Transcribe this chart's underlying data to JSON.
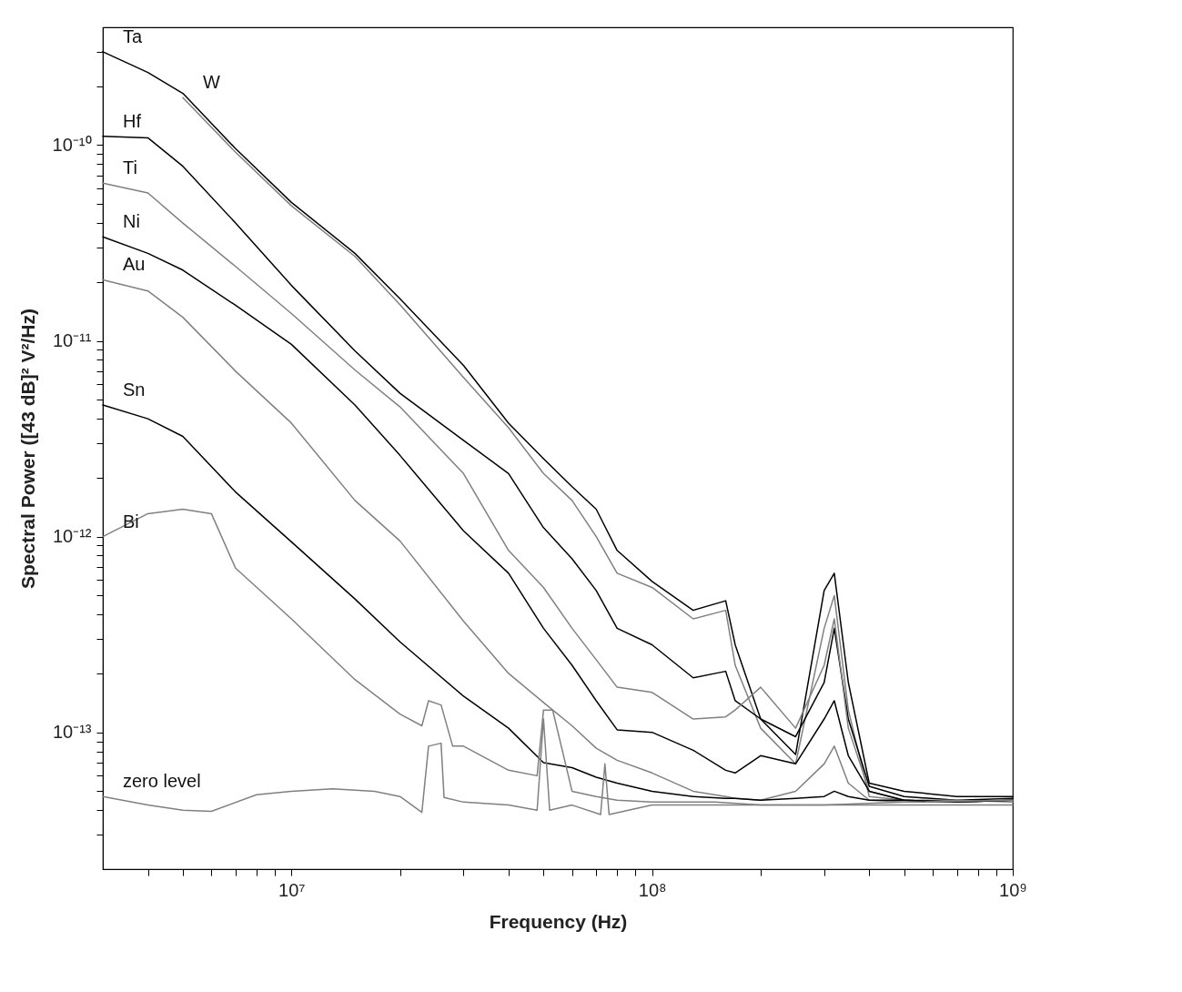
{
  "chart_data": {
    "type": "line",
    "xlabel": "Frequency (Hz)",
    "ylabel": "Spectral Power ([43 dB]² V²/Hz)",
    "log": "xy",
    "xlim": [
      3000000.0,
      1000000000.0
    ],
    "ylim": [
      2e-14,
      4e-10
    ],
    "xticks": [
      {
        "value": 4000000.0,
        "label": null
      },
      {
        "value": 5000000.0,
        "label": null
      },
      {
        "value": 6000000.0,
        "label": null
      },
      {
        "value": 7000000.0,
        "label": null
      },
      {
        "value": 8000000.0,
        "label": null
      },
      {
        "value": 9000000.0,
        "label": null
      },
      {
        "value": 10000000.0,
        "label": "10⁷"
      },
      {
        "value": 20000000.0,
        "label": null
      },
      {
        "value": 30000000.0,
        "label": null
      },
      {
        "value": 40000000.0,
        "label": null
      },
      {
        "value": 50000000.0,
        "label": null
      },
      {
        "value": 60000000.0,
        "label": null
      },
      {
        "value": 70000000.0,
        "label": null
      },
      {
        "value": 80000000.0,
        "label": null
      },
      {
        "value": 90000000.0,
        "label": null
      },
      {
        "value": 100000000.0,
        "label": "10⁸"
      },
      {
        "value": 200000000.0,
        "label": null
      },
      {
        "value": 300000000.0,
        "label": null
      },
      {
        "value": 400000000.0,
        "label": null
      },
      {
        "value": 500000000.0,
        "label": null
      },
      {
        "value": 600000000.0,
        "label": null
      },
      {
        "value": 700000000.0,
        "label": null
      },
      {
        "value": 800000000.0,
        "label": null
      },
      {
        "value": 900000000.0,
        "label": null
      },
      {
        "value": 1000000000.0,
        "label": "10⁹"
      }
    ],
    "yticks": [
      {
        "value": 3e-14,
        "label": null
      },
      {
        "value": 4e-14,
        "label": null
      },
      {
        "value": 5e-14,
        "label": null
      },
      {
        "value": 6e-14,
        "label": null
      },
      {
        "value": 7e-14,
        "label": null
      },
      {
        "value": 8e-14,
        "label": null
      },
      {
        "value": 9e-14,
        "label": null
      },
      {
        "value": 1e-13,
        "label": "10⁻¹³"
      },
      {
        "value": 2e-13,
        "label": null
      },
      {
        "value": 3e-13,
        "label": null
      },
      {
        "value": 4e-13,
        "label": null
      },
      {
        "value": 5e-13,
        "label": null
      },
      {
        "value": 6e-13,
        "label": null
      },
      {
        "value": 7e-13,
        "label": null
      },
      {
        "value": 8e-13,
        "label": null
      },
      {
        "value": 9e-13,
        "label": null
      },
      {
        "value": 1e-12,
        "label": "10⁻¹²"
      },
      {
        "value": 2e-12,
        "label": null
      },
      {
        "value": 3e-12,
        "label": null
      },
      {
        "value": 4e-12,
        "label": null
      },
      {
        "value": 5e-12,
        "label": null
      },
      {
        "value": 6e-12,
        "label": null
      },
      {
        "value": 7e-12,
        "label": null
      },
      {
        "value": 8e-12,
        "label": null
      },
      {
        "value": 9e-12,
        "label": null
      },
      {
        "value": 1e-11,
        "label": "10⁻¹¹"
      },
      {
        "value": 2e-11,
        "label": null
      },
      {
        "value": 3e-11,
        "label": null
      },
      {
        "value": 4e-11,
        "label": null
      },
      {
        "value": 5e-11,
        "label": null
      },
      {
        "value": 6e-11,
        "label": null
      },
      {
        "value": 7e-11,
        "label": null
      },
      {
        "value": 8e-11,
        "label": null
      },
      {
        "value": 9e-11,
        "label": null
      },
      {
        "value": 1e-10,
        "label": "10⁻¹⁰"
      },
      {
        "value": 2e-10,
        "label": null
      },
      {
        "value": 3e-10,
        "label": null
      }
    ],
    "x": [
      3000000.0,
      4000000.0,
      5000000.0,
      7000000.0,
      10000000.0,
      15000000.0,
      20000000.0,
      30000000.0,
      40000000.0,
      50000000.0,
      60000000.0,
      70000000.0,
      80000000.0,
      100000000.0,
      130000000.0,
      160000000.0,
      170000000.0,
      200000000.0,
      250000000.0,
      300000000.0,
      320000000.0,
      350000000.0,
      400000000.0,
      500000000.0,
      700000000.0,
      1000000000.0
    ],
    "series": [
      {
        "name": "Ta",
        "color": "#000000",
        "values": [
          3e-10,
          2.35e-10,
          1.84e-10,
          9.6e-11,
          5.1e-11,
          2.8e-11,
          1.64e-11,
          7.5e-12,
          3.8e-12,
          2.5e-12,
          1.8e-12,
          1.38e-12,
          8.5e-13,
          5.9e-13,
          4.2e-13,
          4.7e-13,
          2.8e-13,
          1.17e-13,
          7.7e-14,
          5.3e-13,
          6.5e-13,
          1.8e-13,
          5.5e-14,
          5e-14,
          4.7e-14,
          4.7e-14
        ]
      },
      {
        "name": "W",
        "color": "#808080",
        "x": [
          5000000.0,
          7000000.0,
          10000000.0,
          15000000.0,
          20000000.0,
          30000000.0,
          40000000.0,
          50000000.0,
          60000000.0,
          70000000.0,
          80000000.0,
          100000000.0,
          130000000.0,
          160000000.0,
          170000000.0,
          200000000.0,
          250000000.0,
          300000000.0,
          320000000.0,
          350000000.0,
          400000000.0,
          500000000.0,
          700000000.0,
          1000000000.0
        ],
        "values": [
          1.75e-10,
          9.2e-11,
          4.9e-11,
          2.7e-11,
          1.53e-11,
          6.5e-12,
          3.6e-12,
          2.1e-12,
          1.53e-12,
          1e-12,
          6.5e-13,
          5.5e-13,
          3.8e-13,
          4.2e-13,
          2.2e-13,
          1.05e-13,
          6.9e-14,
          3.4e-13,
          5e-13,
          1.3e-13,
          4.7e-14,
          4.5e-14,
          4.4e-14,
          4.5e-14
        ]
      },
      {
        "name": "Hf",
        "color": "#000000",
        "values": [
          1.11e-10,
          1.09e-10,
          7.8e-11,
          4e-11,
          1.92e-11,
          8.9e-12,
          5.4e-12,
          3.1e-12,
          2.1e-12,
          1.11e-12,
          7.7e-13,
          5.3e-13,
          3.4e-13,
          2.8e-13,
          1.9e-13,
          2.05e-13,
          1.45e-13,
          1.17e-13,
          9.5e-14,
          1.8e-13,
          3.4e-13,
          1.17e-13,
          5.3e-14,
          4.7e-14,
          4.5e-14,
          4.6e-14
        ]
      },
      {
        "name": "Ti",
        "color": "#808080",
        "values": [
          6.4e-11,
          5.7e-11,
          4e-11,
          2.4e-11,
          1.38e-11,
          7.1e-12,
          4.6e-12,
          2.1e-12,
          8.5e-13,
          5.5e-13,
          3.4e-13,
          2.35e-13,
          1.7e-13,
          1.6e-13,
          1.17e-13,
          1.2e-13,
          1.3e-13,
          1.7e-13,
          1.05e-13,
          2.2e-13,
          3.8e-13,
          1.05e-13,
          5e-14,
          4.5e-14,
          4.5e-14,
          4.4e-14
        ]
      },
      {
        "name": "Ni",
        "color": "#000000",
        "values": [
          3.4e-11,
          2.8e-11,
          2.3e-11,
          1.52e-11,
          9.6e-12,
          4.7e-12,
          2.6e-12,
          1.07e-12,
          6.5e-13,
          3.4e-13,
          2.2e-13,
          1.45e-13,
          1.03e-13,
          1e-13,
          8.1e-14,
          6.4e-14,
          6.2e-14,
          7.6e-14,
          6.9e-14,
          1.17e-13,
          1.45e-13,
          7.6e-14,
          5e-14,
          4.5e-14,
          4.4e-14,
          4.5e-14
        ]
      },
      {
        "name": "Au",
        "color": "#808080",
        "values": [
          2.05e-11,
          1.8e-11,
          1.32e-11,
          7e-12,
          3.8e-12,
          1.53e-12,
          9.5e-13,
          3.7e-13,
          2e-13,
          1.42e-13,
          1.08e-13,
          8.3e-14,
          7.2e-14,
          6.2e-14,
          5e-14,
          4.7e-14,
          4.6e-14,
          4.5e-14,
          5e-14,
          6.9e-14,
          8.5e-14,
          5.5e-14,
          4.5e-14,
          4.4e-14,
          4.4e-14,
          4.5e-14
        ]
      },
      {
        "name": "Sn",
        "color": "#000000",
        "values": [
          4.7e-12,
          4e-12,
          3.25e-12,
          1.69e-12,
          9.4e-13,
          4.8e-13,
          2.9e-13,
          1.53e-13,
          1.05e-13,
          7e-14,
          6.6e-14,
          5.9e-14,
          5.5e-14,
          5e-14,
          4.7e-14,
          4.6e-14,
          4.6e-14,
          4.5e-14,
          4.6e-14,
          4.7e-14,
          5e-14,
          4.7e-14,
          4.5e-14,
          4.5e-14,
          4.4e-14,
          4.5e-14
        ]
      },
      {
        "name": "Bi",
        "color": "#808080",
        "x": [
          3000000.0,
          4000000.0,
          5000000.0,
          6000000.0,
          7000000.0,
          10000000.0,
          15000000.0,
          20000000.0,
          23000000.0,
          24000000.0,
          26000000.0,
          28000000.0,
          30000000.0,
          40000000.0,
          48000000.0,
          50000000.0,
          53000000.0,
          60000000.0,
          70000000.0,
          80000000.0,
          100000000.0,
          150000000.0,
          200000000.0,
          300000000.0,
          500000000.0,
          1000000000.0
        ],
        "values": [
          1e-12,
          1.31e-12,
          1.38e-12,
          1.31e-12,
          6.9e-13,
          3.8e-13,
          1.86e-13,
          1.24e-13,
          1.08e-13,
          1.45e-13,
          1.38e-13,
          8.5e-14,
          8.5e-14,
          6.4e-14,
          6e-14,
          1.3e-13,
          1.3e-13,
          5e-14,
          4.7e-14,
          4.5e-14,
          4.4e-14,
          4.4e-14,
          4.25e-14,
          4.25e-14,
          4.4e-14,
          4.5e-14
        ]
      },
      {
        "name": "zero level",
        "color": "#808080",
        "x": [
          3000000.0,
          4000000.0,
          5000000.0,
          6000000.0,
          8000000.0,
          10000000.0,
          13000000.0,
          17000000.0,
          20000000.0,
          23000000.0,
          24000000.0,
          26000000.0,
          26500000.0,
          30000000.0,
          40000000.0,
          48000000.0,
          50000000.0,
          52000000.0,
          60000000.0,
          72000000.0,
          74000000.0,
          76000000.0,
          100000000.0,
          200000000.0,
          500000000.0,
          1000000000.0
        ],
        "values": [
          4.7e-14,
          4.25e-14,
          4e-14,
          3.95e-14,
          4.8e-14,
          5e-14,
          5.15e-14,
          5e-14,
          4.7e-14,
          3.9e-14,
          8.5e-14,
          8.8e-14,
          4.65e-14,
          4.4e-14,
          4.25e-14,
          4e-14,
          1.17e-13,
          4e-14,
          4.25e-14,
          3.8e-14,
          6.9e-14,
          3.8e-14,
          4.25e-14,
          4.25e-14,
          4.25e-14,
          4.25e-14
        ]
      }
    ]
  }
}
